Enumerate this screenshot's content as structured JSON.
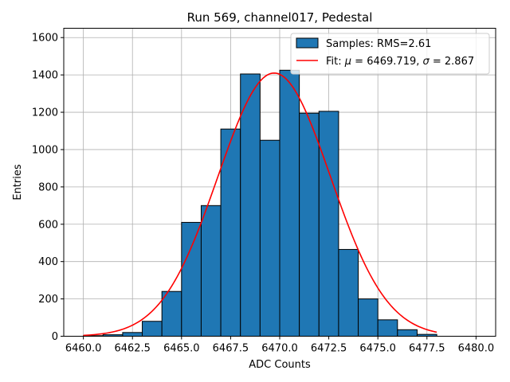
{
  "chart_data": {
    "type": "bar",
    "title": "Run 569, channel017, Pedestal",
    "xlabel": "ADC Counts",
    "ylabel": "Entries",
    "xlim": [
      6459.0,
      6481.0
    ],
    "ylim": [
      0,
      1650
    ],
    "xticks": [
      6460.0,
      6462.5,
      6465.0,
      6467.5,
      6470.0,
      6472.5,
      6475.0,
      6477.5,
      6480.0
    ],
    "xtick_labels": [
      "6460.0",
      "6462.5",
      "6465.0",
      "6467.5",
      "6470.0",
      "6472.5",
      "6475.0",
      "6477.5",
      "6480.0"
    ],
    "yticks": [
      0,
      200,
      400,
      600,
      800,
      1000,
      1200,
      1400,
      1600
    ],
    "ytick_labels": [
      "0",
      "200",
      "400",
      "600",
      "800",
      "1000",
      "1200",
      "1400",
      "1600"
    ],
    "grid": true,
    "legend_position": "top-right",
    "series": [
      {
        "name": "Samples: RMS=2.61",
        "type": "histogram",
        "color": "#1f77b4",
        "edgecolor": "#000000",
        "bin_edges": [
          6460,
          6461,
          6462,
          6463,
          6464,
          6465,
          6466,
          6467,
          6468,
          6469,
          6470,
          6471,
          6472,
          6473,
          6474,
          6475,
          6476,
          6477,
          6478
        ],
        "values": [
          3,
          8,
          20,
          80,
          240,
          610,
          700,
          1110,
          1405,
          1050,
          1425,
          1195,
          1205,
          465,
          200,
          88,
          35,
          10
        ]
      },
      {
        "name_parts": [
          "Fit: ",
          "μ",
          " = 6469.719, ",
          "σ",
          " = 2.867"
        ],
        "type": "gaussian_fit",
        "color": "#ff0000",
        "mu": 6469.719,
        "sigma": 2.867,
        "amplitude": 1410,
        "x_range": [
          6460,
          6478
        ]
      }
    ]
  }
}
